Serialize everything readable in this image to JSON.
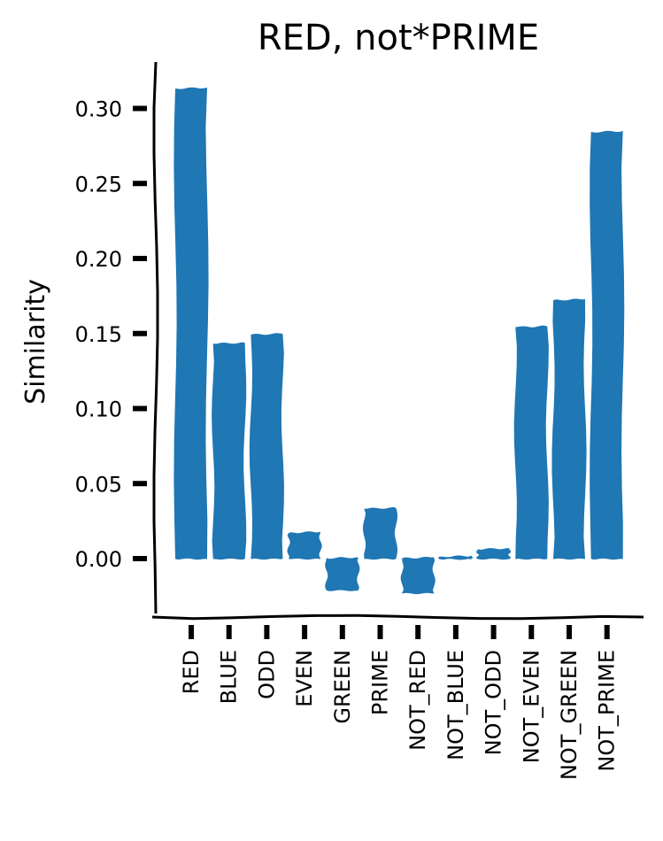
{
  "chart_data": {
    "type": "bar",
    "title": "RED, not*PRIME",
    "xlabel": "",
    "ylabel": "Similarity",
    "categories": [
      "RED",
      "BLUE",
      "ODD",
      "EVEN",
      "GREEN",
      "PRIME",
      "NOT_RED",
      "NOT_BLUE",
      "NOT_ODD",
      "NOT_EVEN",
      "NOT_GREEN",
      "NOT_PRIME"
    ],
    "values": [
      0.313,
      0.143,
      0.149,
      0.017,
      -0.021,
      0.033,
      -0.023,
      0.001,
      0.006,
      0.154,
      0.172,
      0.284
    ],
    "ylim": [
      -0.037,
      0.33
    ],
    "yticks": [
      0.0,
      0.05,
      0.1,
      0.15,
      0.2,
      0.25,
      0.3
    ],
    "ytick_labels": [
      "0.00",
      "0.05",
      "0.10",
      "0.15",
      "0.20",
      "0.25",
      "0.30"
    ],
    "bar_color": "#1f77b4",
    "grid": false,
    "style": "xkcd"
  }
}
